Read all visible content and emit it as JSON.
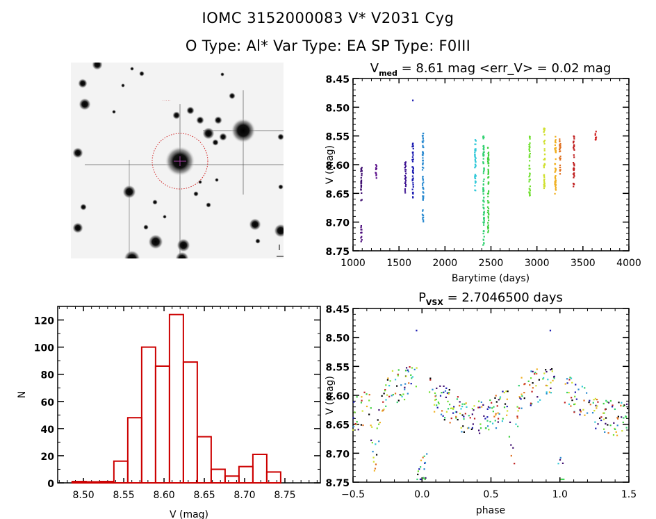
{
  "header": {
    "title": "IOMC 3152000083    V* V2031 Cyg",
    "subtitle": "O Type: Al*   Var Type: EA   SP Type: F0III"
  },
  "starfield": {
    "description": "finder chart image with target circled",
    "target_marker": "red dotted circle"
  },
  "chart_data": [
    {
      "id": "lightcurve",
      "type": "scatter",
      "title": "V_med = 8.61 mag <err_V> = 0.02 mag",
      "title_main": "V",
      "title_sub": "med",
      "title_rest": " = 8.61 mag <err_V> = 0.02 mag",
      "xlabel": "Barytime (days)",
      "ylabel": "V (mag)",
      "xlim": [
        1000,
        4000
      ],
      "ylim": [
        8.75,
        8.45
      ],
      "y_inverted": true,
      "xticks": [
        "1000",
        "1500",
        "2000",
        "2500",
        "3000",
        "3500",
        "4000"
      ],
      "yticks": [
        "8.45",
        "8.50",
        "8.55",
        "8.60",
        "8.65",
        "8.70",
        "8.75"
      ],
      "groups": [
        {
          "x": 1090,
          "ymin": 8.6,
          "ymax": 8.665,
          "color": "#3c0a6e"
        },
        {
          "x": 1090,
          "ymin": 8.705,
          "ymax": 8.735,
          "color": "#4a0a7a"
        },
        {
          "x": 1250,
          "ymin": 8.6,
          "ymax": 8.625,
          "color": "#5a0f8a"
        },
        {
          "x": 1570,
          "ymin": 8.595,
          "ymax": 8.655,
          "color": "#3a1090"
        },
        {
          "x": 1650,
          "ymin": 8.56,
          "ymax": 8.66,
          "color": "#1a1ab0"
        },
        {
          "x": 1650,
          "ymin": 8.488,
          "ymax": 8.488,
          "color": "#1a1ab0"
        },
        {
          "x": 1760,
          "ymin": 8.545,
          "ymax": 8.7,
          "color": "#2a8ad0"
        },
        {
          "x": 2330,
          "ymin": 8.55,
          "ymax": 8.65,
          "color": "#30c8d8"
        },
        {
          "x": 2420,
          "ymin": 8.55,
          "ymax": 8.74,
          "color": "#30d070"
        },
        {
          "x": 2470,
          "ymin": 8.57,
          "ymax": 8.72,
          "color": "#40d040"
        },
        {
          "x": 2920,
          "ymin": 8.55,
          "ymax": 8.655,
          "color": "#70e030"
        },
        {
          "x": 3080,
          "ymin": 8.535,
          "ymax": 8.645,
          "color": "#d0e030"
        },
        {
          "x": 3200,
          "ymin": 8.55,
          "ymax": 8.655,
          "color": "#f0b020"
        },
        {
          "x": 3250,
          "ymin": 8.555,
          "ymax": 8.62,
          "color": "#e07020"
        },
        {
          "x": 3400,
          "ymin": 8.55,
          "ymax": 8.64,
          "color": "#c02020"
        },
        {
          "x": 3640,
          "ymin": 8.54,
          "ymax": 8.56,
          "color": "#d02020"
        }
      ]
    },
    {
      "id": "histogram",
      "type": "bar",
      "title": "",
      "xlabel": "V (mag)",
      "ylabel": "N",
      "xlim": [
        8.468,
        8.794
      ],
      "ylim": [
        0,
        130
      ],
      "xticks": [
        "8.50",
        "8.55",
        "8.60",
        "8.65",
        "8.70",
        "8.75"
      ],
      "yticks": [
        "0",
        "20",
        "40",
        "60",
        "80",
        "100",
        "120"
      ],
      "bin_start": 8.486,
      "bin_width": 0.01725,
      "values": [
        1,
        0,
        1,
        16,
        48,
        100,
        86,
        124,
        89,
        34,
        10,
        5,
        12,
        21,
        8
      ],
      "color": "#cc0000"
    },
    {
      "id": "phased",
      "type": "scatter",
      "title_main": "P",
      "title_sub": "VSX",
      "title_rest": " = 2.7046500 days",
      "xlabel": "phase",
      "ylabel": "V (mag)",
      "xlim": [
        -0.5,
        1.5
      ],
      "ylim": [
        8.75,
        8.45
      ],
      "y_inverted": true,
      "xticks": [
        "-0.5",
        "0.0",
        "0.5",
        "1.0",
        "1.5"
      ],
      "yticks": [
        "8.45",
        "8.50",
        "8.55",
        "8.60",
        "8.65",
        "8.70",
        "8.75"
      ],
      "period_days": 2.70465,
      "primary_eclipse_phase": 0.0,
      "primary_eclipse_depth_mag": 8.73,
      "secondary_eclipse_phase": 0.66,
      "secondary_eclipse_depth_mag": 8.72,
      "max_brightness_mag": 8.56
    }
  ]
}
